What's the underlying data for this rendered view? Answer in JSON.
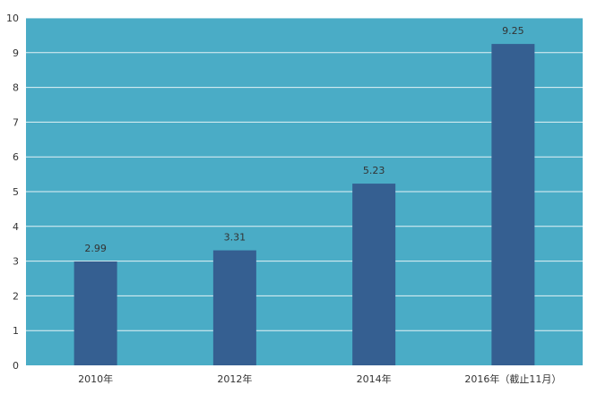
{
  "chart_data": {
    "type": "bar",
    "categories": [
      "2010年",
      "2012年",
      "2014年",
      "2016年（截止11月）"
    ],
    "values": [
      2.99,
      3.31,
      5.23,
      9.25
    ],
    "data_labels": [
      "2.99",
      "3.31",
      "5.23",
      "9.25"
    ],
    "title": "",
    "xlabel": "",
    "ylabel": "",
    "ylim": [
      0,
      10
    ],
    "yticks": [
      "0",
      "1",
      "2",
      "3",
      "4",
      "5",
      "6",
      "7",
      "8",
      "9",
      "10"
    ],
    "grid": true,
    "legend": "none",
    "colors": {
      "plot_background": "#4aacc6",
      "bar": "#355f91",
      "grid": "#ffffff"
    }
  }
}
